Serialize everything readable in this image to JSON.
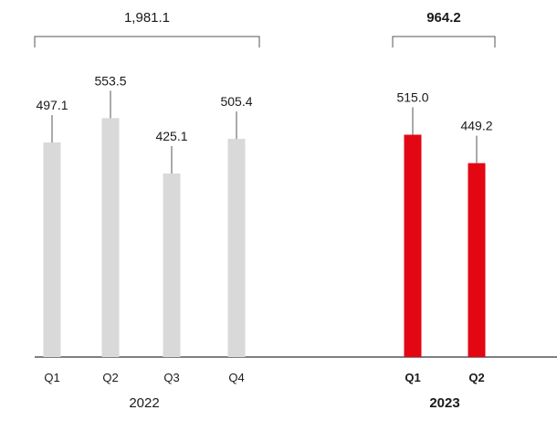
{
  "chart_data": {
    "type": "bar",
    "groups": [
      {
        "label": "2022",
        "total": "1,981.1",
        "bold": false,
        "color": "#d9d9d9",
        "categories": [
          "Q1",
          "Q2",
          "Q3",
          "Q4"
        ],
        "values": [
          497.1,
          553.5,
          425.1,
          505.4
        ],
        "value_labels": [
          "497.1",
          "553.5",
          "425.1",
          "505.4"
        ]
      },
      {
        "label": "2023",
        "total": "964.2",
        "bold": true,
        "color": "#e30613",
        "categories": [
          "Q1",
          "Q2"
        ],
        "values": [
          515.0,
          449.2
        ],
        "value_labels": [
          "515.0",
          "449.2"
        ]
      }
    ]
  }
}
